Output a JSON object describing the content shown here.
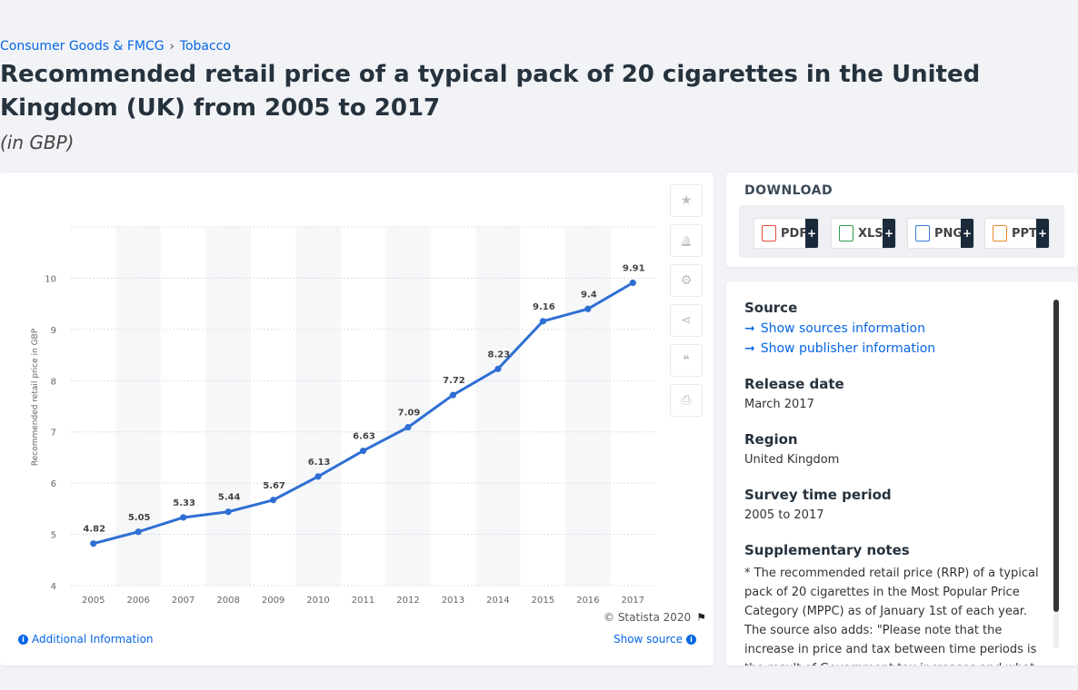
{
  "breadcrumb": {
    "parent": "Consumer Goods & FMCG",
    "separator": "›",
    "current": "Tobacco"
  },
  "title": "Recommended retail price of a typical pack of 20 cigarettes in the United Kingdom (UK) from 2005 to 2017",
  "subtitle": "(in GBP)",
  "chart_data": {
    "type": "line",
    "categories": [
      "2005",
      "2006",
      "2007",
      "2008",
      "2009",
      "2010",
      "2011",
      "2012",
      "2013",
      "2014",
      "2015",
      "2016",
      "2017"
    ],
    "values": [
      4.82,
      5.05,
      5.33,
      5.44,
      5.67,
      6.13,
      6.63,
      7.09,
      7.72,
      8.23,
      9.16,
      9.4,
      9.91
    ],
    "data_labels": [
      "4.82",
      "5.05",
      "5.33",
      "5.44",
      "5.67",
      "6.13",
      "6.63",
      "7.09",
      "7.72",
      "8.23",
      "9.16",
      "9.4",
      "9.91"
    ],
    "ylabel": "Recommended retail price in GBP",
    "ylim": [
      4,
      11
    ],
    "yticks": [
      "4",
      "5",
      "6",
      "7",
      "8",
      "9",
      "10"
    ],
    "grid": true,
    "line_color": "#2f6fd3"
  },
  "chart_footer": {
    "copyright": "© Statista 2020",
    "additional_info": "Additional Information",
    "show_source": "Show source"
  },
  "tools": [
    {
      "name": "star-icon",
      "glyph": "★"
    },
    {
      "name": "bell-icon",
      "glyph": "🔔"
    },
    {
      "name": "gear-icon",
      "glyph": "⚙"
    },
    {
      "name": "share-icon",
      "glyph": "⋖"
    },
    {
      "name": "quote-icon",
      "glyph": "❝"
    },
    {
      "name": "print-icon",
      "glyph": "⎙"
    }
  ],
  "download": {
    "title": "DOWNLOAD",
    "buttons": [
      {
        "label": "PDF",
        "color": "#e84a3a"
      },
      {
        "label": "XLS",
        "color": "#2e9b4a"
      },
      {
        "label": "PNG",
        "color": "#3a7bd5"
      },
      {
        "label": "PPT",
        "color": "#e88a2a"
      }
    ],
    "plus": "+"
  },
  "info": {
    "source_h": "Source",
    "show_sources": "Show sources information",
    "show_publisher": "Show publisher information",
    "release_h": "Release date",
    "release_v": "March 2017",
    "region_h": "Region",
    "region_v": "United Kingdom",
    "survey_h": "Survey time period",
    "survey_v": "2005 to 2017",
    "notes_h": "Supplementary notes",
    "notes_v": "* The recommended retail price (RRP) of a typical pack of 20 cigarettes in the Most Popular Price Category (MPPC) as of January 1st of each year. The source also adds: \"Please note that the increase in price and tax between time periods is the result of Government tax increases and what the"
  }
}
